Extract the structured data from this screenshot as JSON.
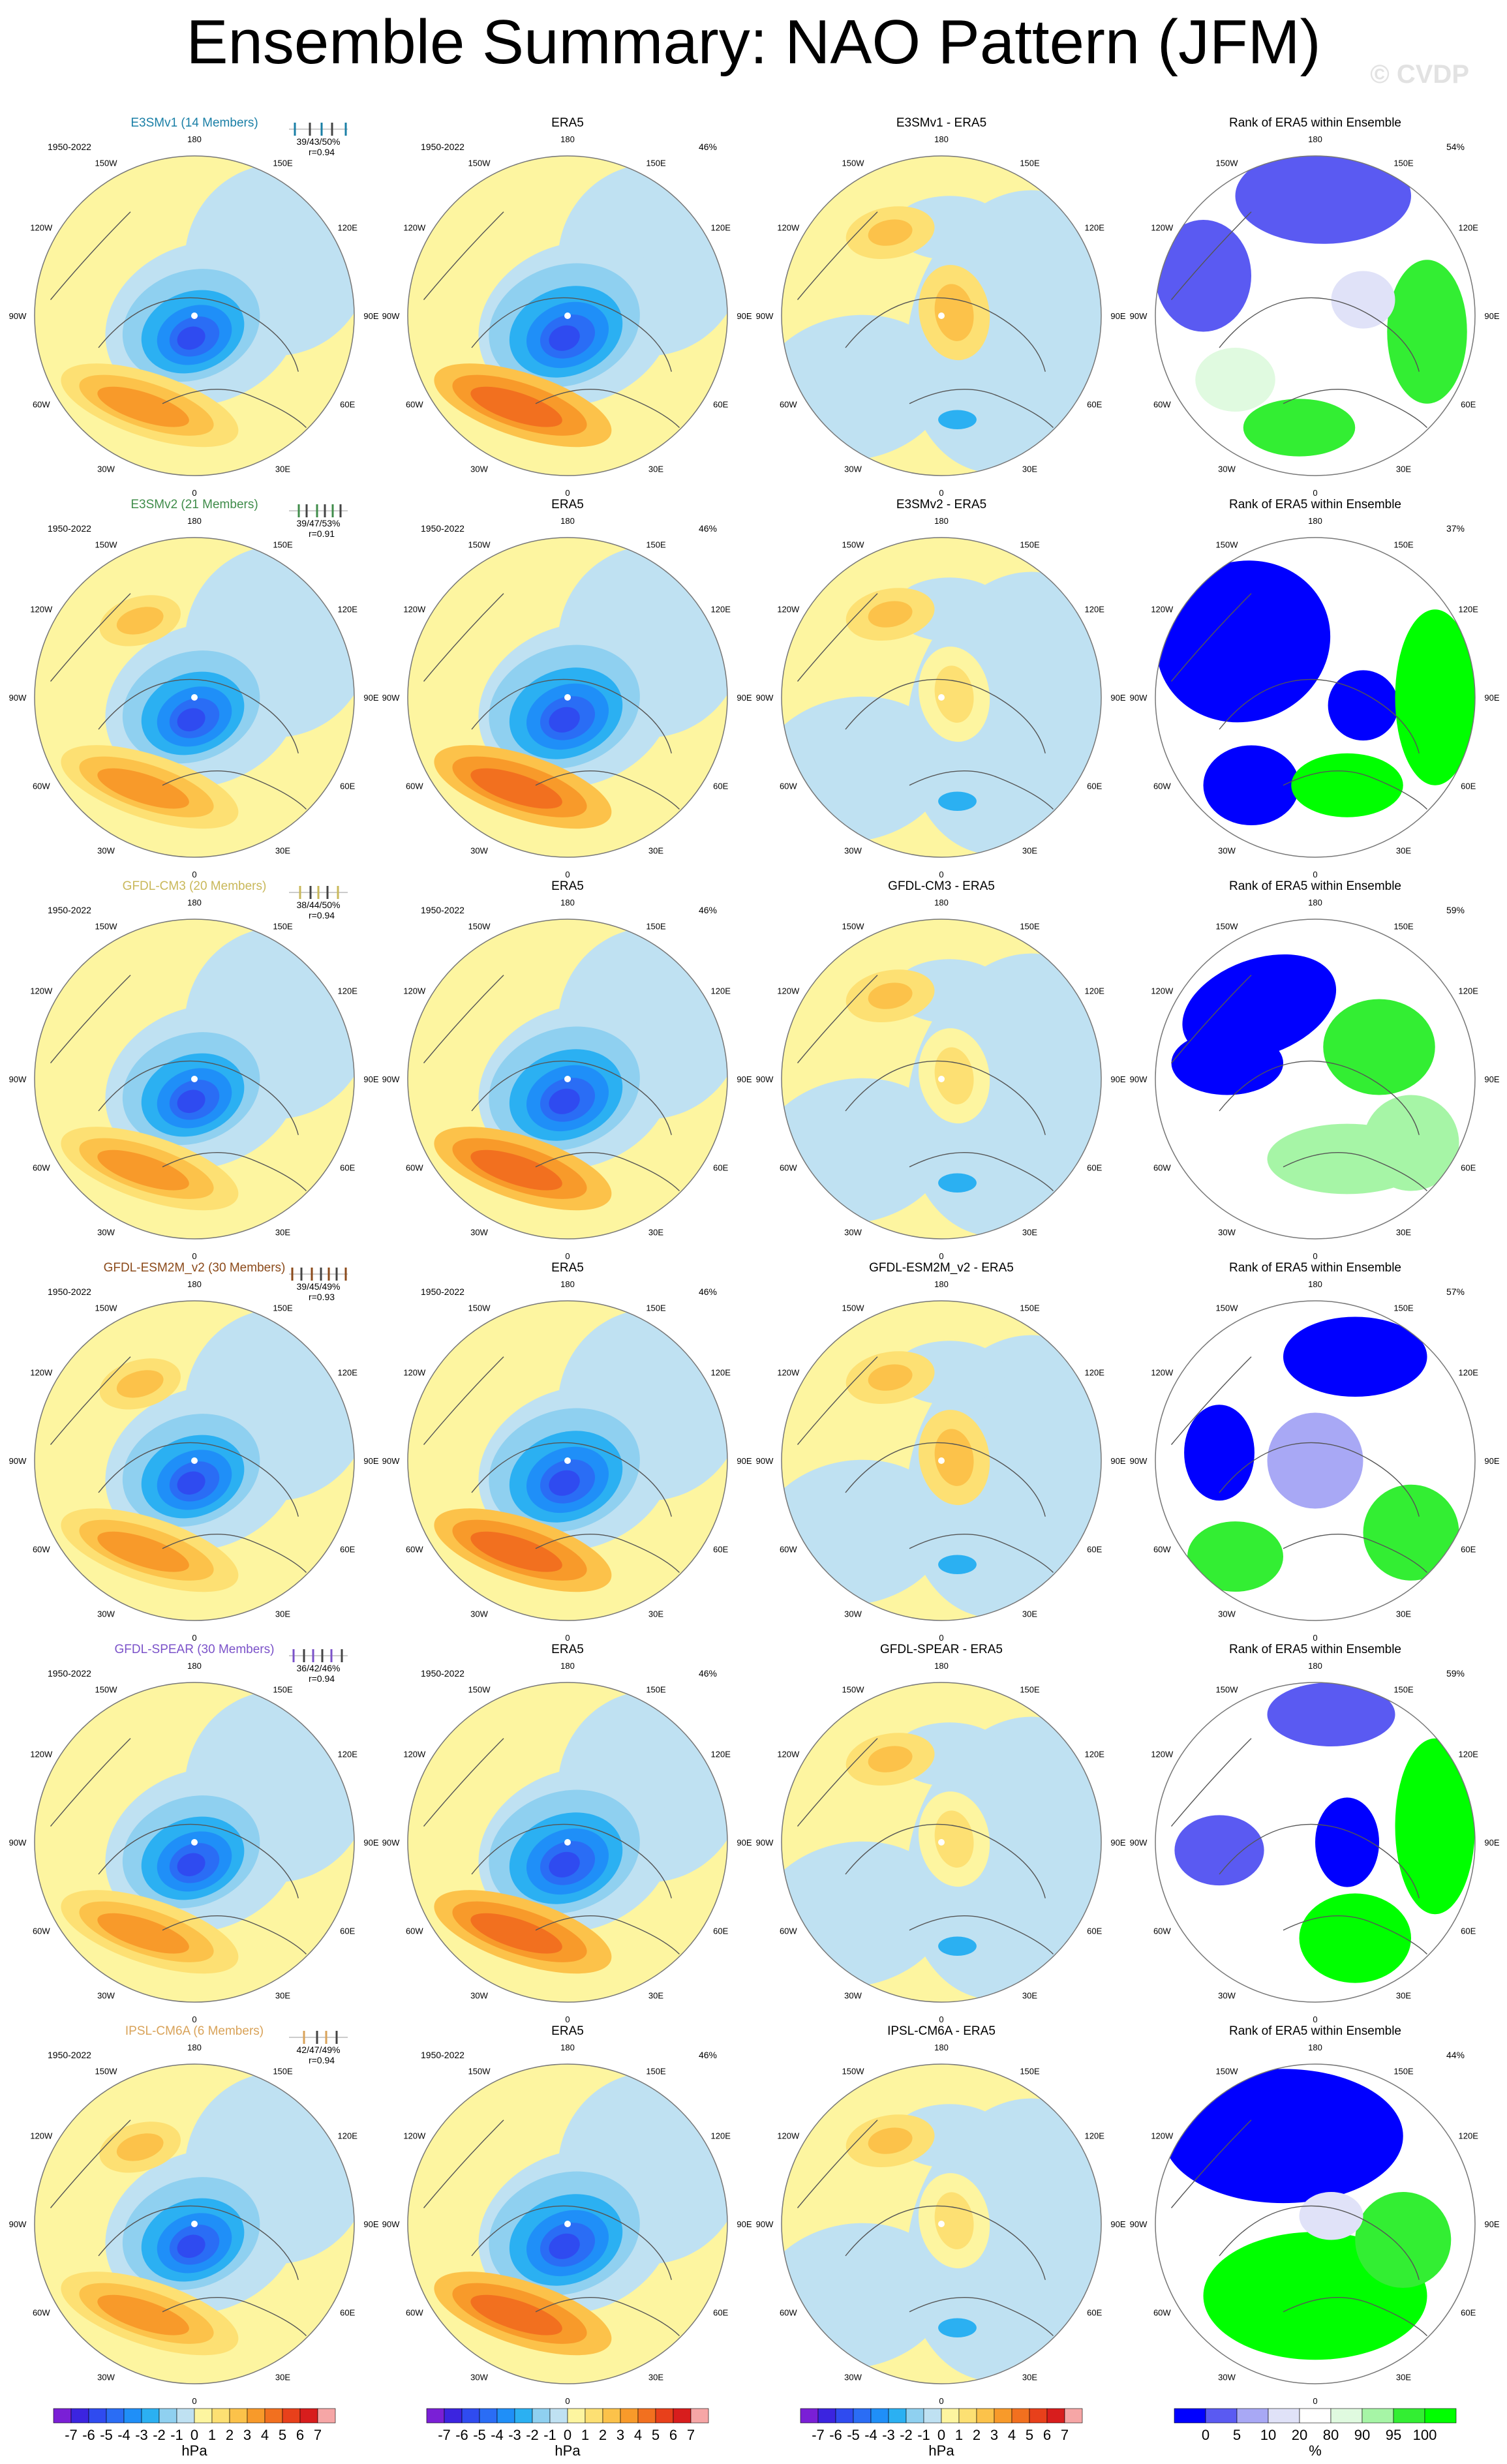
{
  "title": "Ensemble Summary: NAO Pattern (JFM)",
  "watermark": "© CVDP",
  "period": "1950-2022",
  "lon_labels": [
    "180",
    "150E",
    "120E",
    "90E",
    "60E",
    "30E",
    "0",
    "30W",
    "60W",
    "90W",
    "120W",
    "150W"
  ],
  "panel_titles": {
    "obs": "ERA5",
    "rank": "Rank of ERA5 within Ensemble"
  },
  "obs_pct": "46%",
  "colors": {
    "background": "#ffffff",
    "land_outline": "#555555",
    "E3SMv1": "#1a7fa6",
    "E3SMv2": "#3f8c4a",
    "GFDL-CM3": "#c9b85a",
    "GFDL-ESM2M_v2": "#8b4a1a",
    "GFDL-SPEAR": "#7b52c9",
    "IPSL-CM6A": "#d9a35a"
  },
  "chart_data": {
    "type": "heatmap",
    "projection": "north-polar-stereographic",
    "rows": [
      {
        "model": "E3SMv1",
        "label": "E3SMv1 (14 Members)",
        "diff_title": "E3SMv1 - ERA5",
        "stats": "39/43/50%",
        "r": "r=0.94",
        "rank_pct": "54%",
        "tick_xs": [
          -0.36,
          -0.13,
          0.05,
          0.21,
          0.42
        ]
      },
      {
        "model": "E3SMv2",
        "label": "E3SMv2 (21 Members)",
        "diff_title": "E3SMv2 - ERA5",
        "stats": "39/47/53%",
        "r": "r=0.91",
        "rank_pct": "37%",
        "tick_xs": [
          -0.3,
          -0.18,
          -0.02,
          0.1,
          0.22,
          0.34
        ]
      },
      {
        "model": "GFDL-CM3",
        "label": "GFDL-CM3 (20 Members)",
        "diff_title": "GFDL-CM3 - ERA5",
        "stats": "38/44/50%",
        "r": "r=0.94",
        "rank_pct": "59%",
        "tick_xs": [
          -0.28,
          -0.12,
          0.0,
          0.14,
          0.3
        ]
      },
      {
        "model": "GFDL-ESM2M_v2",
        "label": "GFDL-ESM2M_v2 (30 Members)",
        "diff_title": "GFDL-ESM2M_v2 - ERA5",
        "stats": "39/45/49%",
        "r": "r=0.93",
        "rank_pct": "57%",
        "tick_xs": [
          -0.4,
          -0.26,
          -0.1,
          0.04,
          0.16,
          0.28,
          0.42
        ]
      },
      {
        "model": "GFDL-SPEAR",
        "label": "GFDL-SPEAR (30 Members)",
        "diff_title": "GFDL-SPEAR - ERA5",
        "stats": "36/42/46%",
        "r": "r=0.94",
        "rank_pct": "59%",
        "tick_xs": [
          -0.38,
          -0.22,
          -0.08,
          0.06,
          0.2,
          0.36
        ]
      },
      {
        "model": "IPSL-CM6A",
        "label": "IPSL-CM6A (6 Members)",
        "diff_title": "IPSL-CM6A - ERA5",
        "stats": "42/47/49%",
        "r": "r=0.94",
        "rank_pct": "44%",
        "tick_xs": [
          -0.22,
          -0.02,
          0.12,
          0.28
        ]
      }
    ],
    "colorbar_hpa": {
      "unit": "hPa",
      "levels": [
        "-7",
        "-6",
        "-5",
        "-4",
        "-3",
        "-2",
        "-1",
        "0",
        "1",
        "2",
        "3",
        "4",
        "5",
        "6",
        "7"
      ],
      "colors": [
        "#7a1fd6",
        "#3b24e0",
        "#2f4bf0",
        "#2a6df5",
        "#1f8ff8",
        "#2bb0f2",
        "#8fd0f0",
        "#bfe1f2",
        "#fdf5a0",
        "#fde073",
        "#fcc24a",
        "#f89a2a",
        "#f2701f",
        "#e8401b",
        "#d81d1d",
        "#f6a6a6"
      ]
    },
    "colorbar_rank": {
      "unit": "%",
      "levels": [
        "0",
        "5",
        "10",
        "20",
        "80",
        "90",
        "95",
        "100"
      ],
      "colors": [
        "#0000ff",
        "#5a5af2",
        "#a8a8f5",
        "#e0e2f8",
        "#ffffff",
        "#e0fae0",
        "#a6f5a6",
        "#33ee33",
        "#00ff00"
      ]
    }
  }
}
